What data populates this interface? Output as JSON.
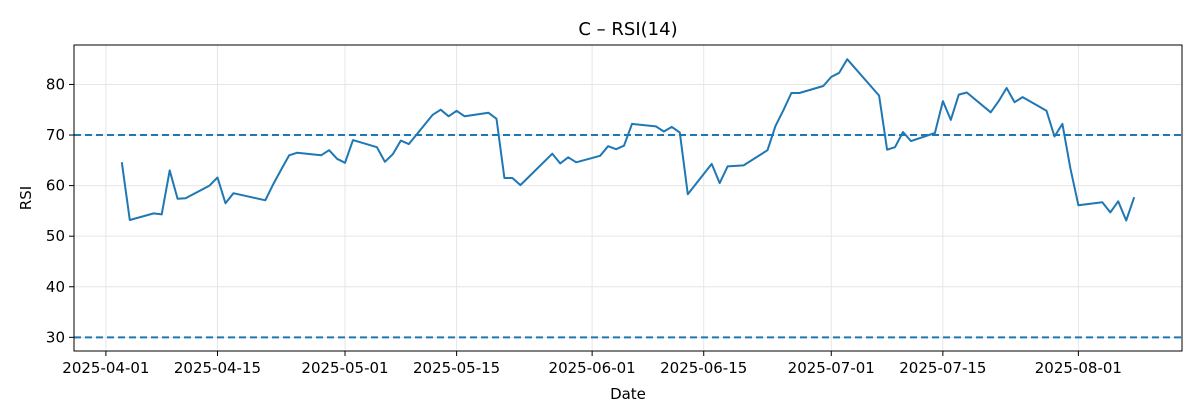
{
  "chart_data": {
    "type": "line",
    "title": "C – RSI(14)",
    "xlabel": "Date",
    "ylabel": "RSI",
    "x_ticks": [
      "2025-04-01",
      "2025-04-15",
      "2025-05-01",
      "2025-05-15",
      "2025-06-01",
      "2025-06-15",
      "2025-07-01",
      "2025-07-15",
      "2025-08-01"
    ],
    "y_ticks": [
      30,
      40,
      50,
      60,
      70,
      80
    ],
    "xlim": [
      "2025-03-28",
      "2025-08-14"
    ],
    "ylim": [
      27.3,
      87.8
    ],
    "grid": true,
    "reference_lines": [
      {
        "y": 70,
        "style": "dashed"
      },
      {
        "y": 30,
        "style": "dashed"
      }
    ],
    "series": [
      {
        "color": "#1f77b4",
        "x": [
          "2025-04-03",
          "2025-04-04",
          "2025-04-07",
          "2025-04-08",
          "2025-04-09",
          "2025-04-10",
          "2025-04-11",
          "2025-04-14",
          "2025-04-15",
          "2025-04-16",
          "2025-04-17",
          "2025-04-21",
          "2025-04-22",
          "2025-04-23",
          "2025-04-24",
          "2025-04-25",
          "2025-04-28",
          "2025-04-29",
          "2025-04-30",
          "2025-05-01",
          "2025-05-02",
          "2025-05-05",
          "2025-05-06",
          "2025-05-07",
          "2025-05-08",
          "2025-05-09",
          "2025-05-12",
          "2025-05-13",
          "2025-05-14",
          "2025-05-15",
          "2025-05-16",
          "2025-05-19",
          "2025-05-20",
          "2025-05-21",
          "2025-05-22",
          "2025-05-23",
          "2025-05-27",
          "2025-05-28",
          "2025-05-29",
          "2025-05-30",
          "2025-06-02",
          "2025-06-03",
          "2025-06-04",
          "2025-06-05",
          "2025-06-06",
          "2025-06-09",
          "2025-06-10",
          "2025-06-11",
          "2025-06-12",
          "2025-06-13",
          "2025-06-16",
          "2025-06-17",
          "2025-06-18",
          "2025-06-20",
          "2025-06-23",
          "2025-06-24",
          "2025-06-25",
          "2025-06-26",
          "2025-06-27",
          "2025-06-30",
          "2025-07-01",
          "2025-07-02",
          "2025-07-03",
          "2025-07-07",
          "2025-07-08",
          "2025-07-09",
          "2025-07-10",
          "2025-07-11",
          "2025-07-14",
          "2025-07-15",
          "2025-07-16",
          "2025-07-17",
          "2025-07-18",
          "2025-07-21",
          "2025-07-22",
          "2025-07-23",
          "2025-07-24",
          "2025-07-25",
          "2025-07-28",
          "2025-07-29",
          "2025-07-30",
          "2025-07-31",
          "2025-08-01",
          "2025-08-04",
          "2025-08-05",
          "2025-08-06",
          "2025-08-07",
          "2025-08-08"
        ],
        "values": [
          64.6,
          53.2,
          54.5,
          54.3,
          63.0,
          57.4,
          57.5,
          60.0,
          61.6,
          56.5,
          58.5,
          57.1,
          60.3,
          63.2,
          66.0,
          66.5,
          66.0,
          67.0,
          65.3,
          64.5,
          69.0,
          67.6,
          64.7,
          66.2,
          68.9,
          68.2,
          74.0,
          75.0,
          73.7,
          74.8,
          73.7,
          74.4,
          73.2,
          61.5,
          61.5,
          60.1,
          66.3,
          64.4,
          65.6,
          64.6,
          65.9,
          67.8,
          67.2,
          67.9,
          72.2,
          71.7,
          70.7,
          71.6,
          70.5,
          58.3,
          64.3,
          60.5,
          63.8,
          64.0,
          67.0,
          71.8,
          74.9,
          78.3,
          78.3,
          79.7,
          81.5,
          82.3,
          85.0,
          77.8,
          67.1,
          67.6,
          70.6,
          68.8,
          70.4,
          76.7,
          73.0,
          78.0,
          78.4,
          74.5,
          76.7,
          79.3,
          76.5,
          77.5,
          74.8,
          69.7,
          72.2,
          63.4,
          56.1,
          56.7,
          54.7,
          56.9,
          53.1,
          57.7
        ]
      }
    ]
  }
}
